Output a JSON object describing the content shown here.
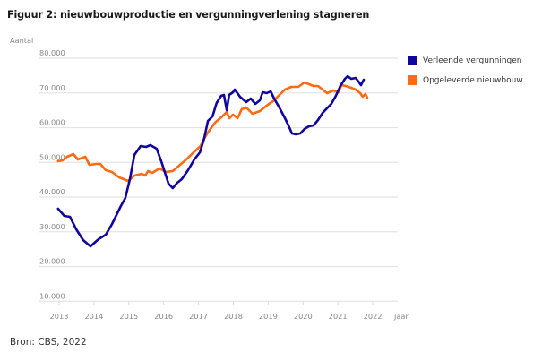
{
  "title": "Figuur 2: nieuwbouwproductie en vergunningverlening stagneren",
  "source": "Bron: CBS, 2022",
  "chart_data": {
    "type": "line",
    "title": "Figuur 2: nieuwbouwproductie en vergunningverlening stagneren",
    "xlabel": "Jaar",
    "ylabel": "Aantal",
    "xlim": [
      2012.5,
      2022.7
    ],
    "ylim": [
      10000,
      80000
    ],
    "grid": true,
    "legend_position": "right",
    "x_ticks": [
      "2013",
      "2014",
      "2015",
      "2016",
      "2017",
      "2018",
      "2019",
      "2020",
      "2021",
      "2022"
    ],
    "y_ticks": [
      "10.000",
      "20.000",
      "30.000",
      "40.000",
      "50.000",
      "60.000",
      "70.000",
      "80.000"
    ],
    "y_tick_values": [
      10000,
      20000,
      30000,
      40000,
      50000,
      60000,
      70000,
      80000
    ],
    "series": [
      {
        "name": "Verleende vergunningen",
        "color": "#10069f",
        "points": [
          [
            2012.97,
            36650
          ],
          [
            2013.15,
            34580
          ],
          [
            2013.31,
            34320
          ],
          [
            2013.49,
            30710
          ],
          [
            2013.69,
            27610
          ],
          [
            2013.9,
            25810
          ],
          [
            2014.13,
            27870
          ],
          [
            2014.34,
            29160
          ],
          [
            2014.52,
            32260
          ],
          [
            2014.77,
            37420
          ],
          [
            2014.9,
            39740
          ],
          [
            2015.03,
            45160
          ],
          [
            2015.16,
            52130
          ],
          [
            2015.34,
            54710
          ],
          [
            2015.49,
            54450
          ],
          [
            2015.62,
            54970
          ],
          [
            2015.8,
            53940
          ],
          [
            2015.93,
            50320
          ],
          [
            2016.14,
            43870
          ],
          [
            2016.26,
            42580
          ],
          [
            2016.39,
            44130
          ],
          [
            2016.52,
            45160
          ],
          [
            2016.7,
            47740
          ],
          [
            2016.88,
            50840
          ],
          [
            2017.04,
            52900
          ],
          [
            2017.16,
            56770
          ],
          [
            2017.27,
            61940
          ],
          [
            2017.4,
            63230
          ],
          [
            2017.52,
            67100
          ],
          [
            2017.65,
            69160
          ],
          [
            2017.73,
            69420
          ],
          [
            2017.81,
            65030
          ],
          [
            2017.88,
            69420
          ],
          [
            2017.99,
            70190
          ],
          [
            2018.04,
            70970
          ],
          [
            2018.19,
            68900
          ],
          [
            2018.37,
            67350
          ],
          [
            2018.5,
            68390
          ],
          [
            2018.63,
            66840
          ],
          [
            2018.76,
            67870
          ],
          [
            2018.84,
            70190
          ],
          [
            2018.96,
            69940
          ],
          [
            2019.07,
            70450
          ],
          [
            2019.17,
            68390
          ],
          [
            2019.32,
            65810
          ],
          [
            2019.48,
            62710
          ],
          [
            2019.58,
            60650
          ],
          [
            2019.68,
            58320
          ],
          [
            2019.79,
            58060
          ],
          [
            2019.92,
            58320
          ],
          [
            2020.04,
            59610
          ],
          [
            2020.17,
            60390
          ],
          [
            2020.3,
            60650
          ],
          [
            2020.43,
            62190
          ],
          [
            2020.56,
            64260
          ],
          [
            2020.71,
            65810
          ],
          [
            2020.81,
            66840
          ],
          [
            2020.94,
            69160
          ],
          [
            2021.07,
            72000
          ],
          [
            2021.2,
            74060
          ],
          [
            2021.28,
            74840
          ],
          [
            2021.38,
            74060
          ],
          [
            2021.51,
            74320
          ],
          [
            2021.59,
            73290
          ],
          [
            2021.66,
            72260
          ],
          [
            2021.74,
            73810
          ]
        ]
      },
      {
        "name": "Opgeleverde nieuwbouw",
        "color": "#ff6a13",
        "points": [
          [
            2012.97,
            50320
          ],
          [
            2013.1,
            50580
          ],
          [
            2013.23,
            51610
          ],
          [
            2013.41,
            52390
          ],
          [
            2013.54,
            50840
          ],
          [
            2013.75,
            51610
          ],
          [
            2013.87,
            49290
          ],
          [
            2014.08,
            49550
          ],
          [
            2014.18,
            49550
          ],
          [
            2014.34,
            47740
          ],
          [
            2014.52,
            47230
          ],
          [
            2014.72,
            45680
          ],
          [
            2014.85,
            45160
          ],
          [
            2014.98,
            44650
          ],
          [
            2015.16,
            46190
          ],
          [
            2015.37,
            46710
          ],
          [
            2015.47,
            46190
          ],
          [
            2015.55,
            47480
          ],
          [
            2015.67,
            46970
          ],
          [
            2015.88,
            48260
          ],
          [
            2016.06,
            47230
          ],
          [
            2016.26,
            47480
          ],
          [
            2016.44,
            49030
          ],
          [
            2016.65,
            50840
          ],
          [
            2016.86,
            52900
          ],
          [
            2017.06,
            54710
          ],
          [
            2017.16,
            56770
          ],
          [
            2017.27,
            58580
          ],
          [
            2017.47,
            61420
          ],
          [
            2017.68,
            63230
          ],
          [
            2017.81,
            64520
          ],
          [
            2017.88,
            62710
          ],
          [
            2017.99,
            63740
          ],
          [
            2018.12,
            62710
          ],
          [
            2018.24,
            65290
          ],
          [
            2018.37,
            65810
          ],
          [
            2018.55,
            64000
          ],
          [
            2018.76,
            64770
          ],
          [
            2018.89,
            65810
          ],
          [
            2019.02,
            66840
          ],
          [
            2019.14,
            67610
          ],
          [
            2019.27,
            68900
          ],
          [
            2019.48,
            70970
          ],
          [
            2019.66,
            71740
          ],
          [
            2019.86,
            71740
          ],
          [
            2020.04,
            73030
          ],
          [
            2020.17,
            72520
          ],
          [
            2020.3,
            72000
          ],
          [
            2020.43,
            72000
          ],
          [
            2020.56,
            70970
          ],
          [
            2020.69,
            69940
          ],
          [
            2020.87,
            70710
          ],
          [
            2021.02,
            70190
          ],
          [
            2021.1,
            72260
          ],
          [
            2021.23,
            72000
          ],
          [
            2021.38,
            71480
          ],
          [
            2021.51,
            70970
          ],
          [
            2021.64,
            69940
          ],
          [
            2021.71,
            68900
          ],
          [
            2021.79,
            69680
          ],
          [
            2021.84,
            68640
          ]
        ]
      }
    ]
  }
}
